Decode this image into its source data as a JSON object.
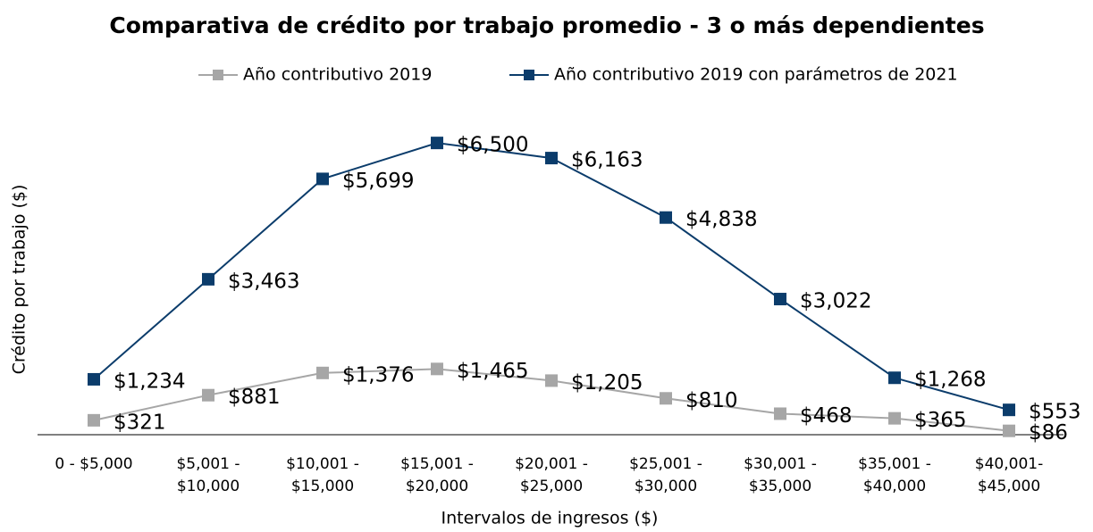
{
  "chart_data": {
    "type": "line",
    "title": "Comparativa de crédito por trabajo promedio - 3 o más dependientes",
    "x_label": "Intervalos de ingresos ($)",
    "y_label": "Crédito por trabajo ($)",
    "categories": [
      [
        "0 - $5,000"
      ],
      [
        "$5,001 -",
        "$10,000"
      ],
      [
        "$10,001 -",
        "$15,000"
      ],
      [
        "$15,001 -",
        "$20,000"
      ],
      [
        "$20,001 -",
        "$25,000"
      ],
      [
        "$25,001 -",
        "$30,000"
      ],
      [
        "$30,001 -",
        "$35,000"
      ],
      [
        "$35,001 -",
        "$40,000"
      ],
      [
        "$40,001-",
        "$45,000"
      ]
    ],
    "series": [
      {
        "name": "Año contributivo 2019",
        "color": "#a6a6a6",
        "values": [
          321,
          881,
          1376,
          1465,
          1205,
          810,
          468,
          365,
          86
        ],
        "value_labels": [
          "$321",
          "$881",
          "$1,376",
          "$1,465",
          "$1,205",
          "$810",
          "$468",
          "$365",
          "$86"
        ]
      },
      {
        "name": "Año contributivo 2019 con parámetros de 2021",
        "color": "#0b3c6b",
        "values": [
          1234,
          3463,
          5699,
          6500,
          6163,
          4838,
          3022,
          1268,
          553
        ],
        "value_labels": [
          "$1,234",
          "$3,463",
          "$5,699",
          "$6,500",
          "$6,163",
          "$4,838",
          "$3,022",
          "$1,268",
          "$553"
        ]
      }
    ],
    "ylim": [
      0,
      7000
    ],
    "legend": "top"
  }
}
